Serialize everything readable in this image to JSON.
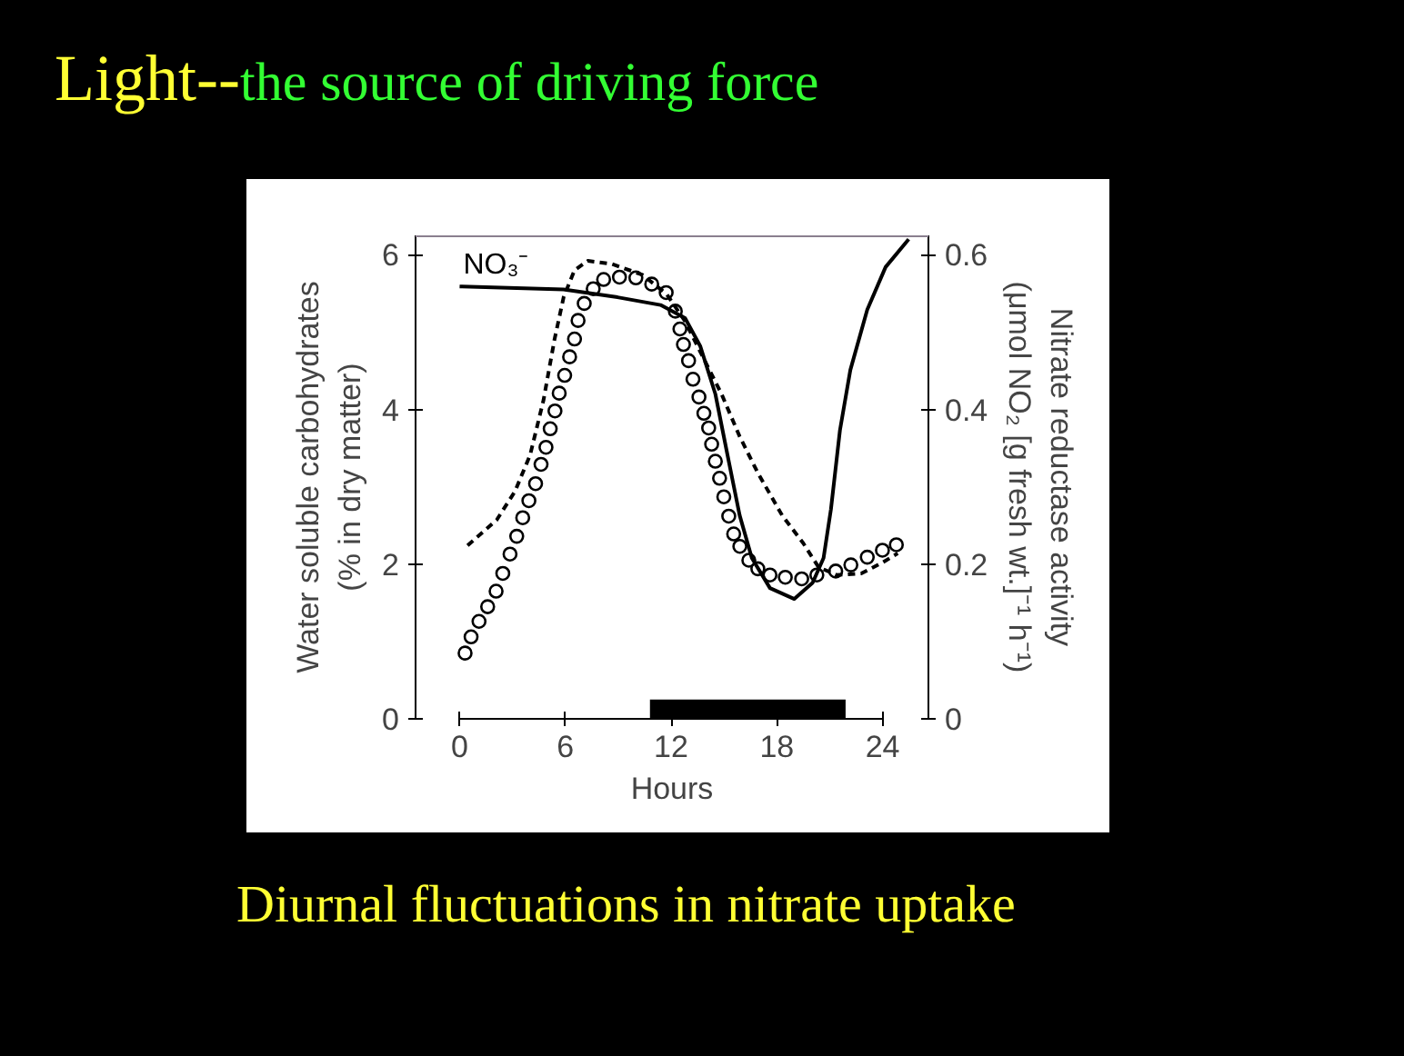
{
  "chart_data": {
    "type": "line",
    "title": "Light--",
    "subtitle": "the source of driving force",
    "xlabel": "Hours",
    "ylabel": "Water soluble carbohydrates\n(% in dry matter)",
    "y2label": "Nitrate reductase activity\n(μmol NO₂ [g fresh wt.]⁻¹ h⁻¹)",
    "annotations": [
      "Diurnal fluctuations in nitrate uptake"
    ],
    "xlim": [
      -2.5,
      26.6
    ],
    "xticks": [
      0,
      6,
      12,
      18,
      24
    ],
    "ylim": [
      0,
      6.25
    ],
    "yticks": [
      0,
      2,
      4,
      6
    ],
    "y2lim": [
      0,
      0.625
    ],
    "y2ticks": [
      0,
      {
        "value": 0.2,
        "label": "0.2"
      },
      {
        "value": 0.4,
        "label": "0.4"
      },
      {
        "value": 0.6,
        "label": "0.6"
      }
    ],
    "grid": false,
    "ref_lines": [
      {
        "axis": "y",
        "value": 6.25,
        "color": "#8a7f8f"
      }
    ],
    "bands": [
      {
        "axis": "x",
        "from": 10.8,
        "to": 21.9,
        "color": "#000000"
      }
    ],
    "series": [
      {
        "type": "scatter",
        "marker": "circle",
        "color": "#000000",
        "x": [
          0.31,
          0.65,
          1.1,
          1.59,
          2.07,
          2.45,
          2.86,
          3.24,
          3.58,
          3.93,
          4.31,
          4.62,
          4.9,
          5.14,
          5.41,
          5.65,
          5.96,
          6.24,
          6.52,
          6.72,
          7.07,
          7.58,
          8.17,
          9.07,
          10.0,
          10.9,
          11.72,
          12.24,
          12.5,
          12.7,
          12.99,
          13.24,
          13.58,
          13.86,
          14.13,
          14.3,
          14.51,
          14.75,
          14.99,
          15.27,
          15.55,
          15.9,
          16.41,
          16.92,
          17.61,
          18.48,
          19.41,
          20.27,
          21.34,
          22.2,
          23.13,
          23.99,
          24.78
        ],
        "values": [
          0.85,
          1.06,
          1.26,
          1.45,
          1.65,
          1.88,
          2.13,
          2.36,
          2.6,
          2.82,
          3.04,
          3.29,
          3.51,
          3.75,
          3.98,
          4.21,
          4.44,
          4.68,
          4.91,
          5.15,
          5.37,
          5.56,
          5.68,
          5.71,
          5.7,
          5.62,
          5.51,
          5.27,
          5.04,
          4.84,
          4.63,
          4.39,
          4.16,
          3.95,
          3.76,
          3.55,
          3.33,
          3.11,
          2.87,
          2.62,
          2.39,
          2.23,
          2.05,
          1.94,
          1.86,
          1.83,
          1.81,
          1.86,
          1.91,
          1.99,
          2.09,
          2.18,
          2.25
        ]
      },
      {
        "line_style": "dashed",
        "axis": "y2",
        "color": "#000000",
        "x": [
          0.45,
          2.1,
          3.14,
          4.0,
          4.76,
          5.38,
          5.9,
          6.52,
          7.27,
          8.65,
          10.37,
          11.75,
          12.79,
          13.82,
          14.86,
          15.89,
          16.92,
          18.3,
          19.5,
          20.37,
          21.4,
          22.79,
          23.99,
          24.86
        ],
        "values": [
          0.224,
          0.257,
          0.294,
          0.341,
          0.412,
          0.49,
          0.545,
          0.58,
          0.592,
          0.588,
          0.574,
          0.549,
          0.514,
          0.467,
          0.42,
          0.365,
          0.318,
          0.263,
          0.227,
          0.196,
          0.186,
          0.188,
          0.202,
          0.214
        ]
      },
      {
        "line_style": "solid",
        "name": "NO₃⁻",
        "color": "#000000",
        "x": [
          0,
          5.9,
          8.96,
          11.4,
          12.79,
          13.65,
          14.51,
          15.2,
          15.89,
          16.58,
          17.61,
          18.99,
          20.03,
          20.65,
          21.07,
          21.58,
          22.17,
          23.13,
          24.17,
          25.48
        ],
        "values": [
          5.59,
          5.55,
          5.45,
          5.35,
          5.18,
          4.82,
          4.2,
          3.41,
          2.63,
          2.08,
          1.69,
          1.55,
          1.76,
          2.08,
          2.71,
          3.73,
          4.51,
          5.29,
          5.84,
          6.2
        ]
      }
    ]
  }
}
